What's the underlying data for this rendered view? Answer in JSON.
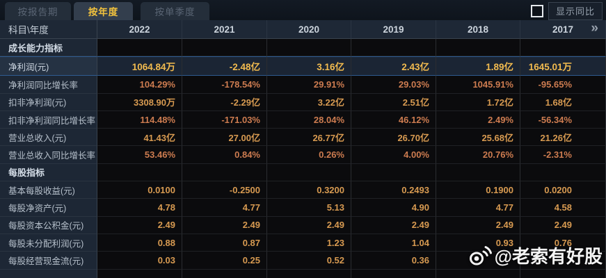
{
  "tabs": [
    {
      "label": "按报告期",
      "active": false
    },
    {
      "label": "按年度",
      "active": true
    },
    {
      "label": "按单季度",
      "active": false
    }
  ],
  "controls": {
    "show_yoy_checkbox_checked": false,
    "show_yoy_label": "显示同比"
  },
  "table": {
    "corner_header": "科目\\年度",
    "years": [
      "2022",
      "2021",
      "2020",
      "2019",
      "2018",
      "2017"
    ],
    "more_years_icon": "»",
    "rows": [
      {
        "type": "section",
        "label": "成长能力指标",
        "values": [
          "",
          "",
          "",
          "",
          "",
          ""
        ]
      },
      {
        "type": "highlight",
        "label": "净利润(元)",
        "values": [
          "1064.84万",
          "-2.48亿",
          "3.16亿",
          "2.43亿",
          "1.89亿",
          "1645.01万"
        ]
      },
      {
        "type": "data",
        "label": "净利润同比增长率",
        "values": [
          "104.29%",
          "-178.54%",
          "29.91%",
          "29.03%",
          "1045.91%",
          "-95.65%"
        ]
      },
      {
        "type": "data",
        "label": "扣非净利润(元)",
        "values": [
          "3308.90万",
          "-2.29亿",
          "3.22亿",
          "2.51亿",
          "1.72亿",
          "1.68亿"
        ]
      },
      {
        "type": "data",
        "label": "扣非净利润同比增长率",
        "values": [
          "114.48%",
          "-171.03%",
          "28.04%",
          "46.12%",
          "2.49%",
          "-56.34%"
        ]
      },
      {
        "type": "data",
        "label": "营业总收入(元)",
        "values": [
          "41.43亿",
          "27.00亿",
          "26.77亿",
          "26.70亿",
          "25.68亿",
          "21.26亿"
        ]
      },
      {
        "type": "data",
        "label": "营业总收入同比增长率",
        "values": [
          "53.46%",
          "0.84%",
          "0.26%",
          "4.00%",
          "20.76%",
          "-2.31%"
        ]
      },
      {
        "type": "section",
        "label": "每股指标",
        "values": [
          "",
          "",
          "",
          "",
          "",
          ""
        ]
      },
      {
        "type": "data",
        "label": "基本每股收益(元)",
        "values": [
          "0.0100",
          "-0.2500",
          "0.3200",
          "0.2493",
          "0.1900",
          "0.0200"
        ]
      },
      {
        "type": "data",
        "label": "每股净资产(元)",
        "values": [
          "4.78",
          "4.77",
          "5.13",
          "4.90",
          "4.77",
          "4.58"
        ]
      },
      {
        "type": "data",
        "label": "每股资本公积金(元)",
        "values": [
          "2.49",
          "2.49",
          "2.49",
          "2.49",
          "2.49",
          "2.49"
        ]
      },
      {
        "type": "data",
        "label": "每股未分配利润(元)",
        "values": [
          "0.88",
          "0.87",
          "1.23",
          "1.04",
          "0.93",
          "0.76"
        ]
      },
      {
        "type": "data",
        "label": "每股经营现金流(元)",
        "values": [
          "0.03",
          "0.25",
          "0.52",
          "0.36",
          "",
          ""
        ]
      }
    ]
  },
  "watermark": {
    "text": "@老索有好股"
  },
  "colors": {
    "active_tab_text": "#f2c23d",
    "value_text": "#d79a51",
    "percent_text": "#cd7c50",
    "highlight_value_text": "#f2bb4f",
    "highlight_row_border": "#2f5c92",
    "label_column_bg": "#1d2735",
    "data_cell_bg": "#0b0b0d"
  }
}
